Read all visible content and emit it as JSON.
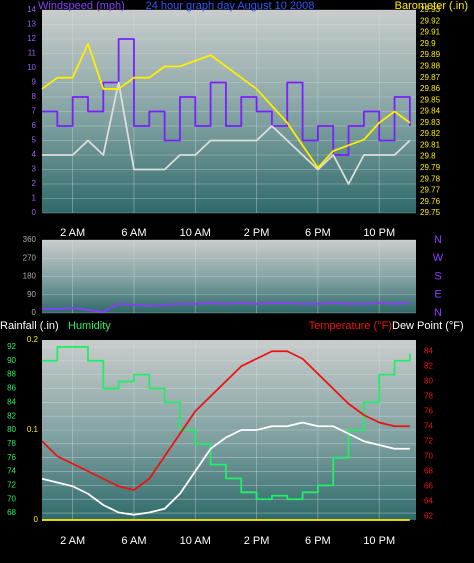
{
  "chart_data": [
    {
      "type": "line",
      "title": "24 hour graph day   August 10 2008",
      "x": [
        0,
        1,
        2,
        3,
        4,
        5,
        6,
        7,
        8,
        9,
        10,
        11,
        12,
        13,
        14,
        15,
        16,
        17,
        18,
        19,
        20,
        21,
        22,
        23,
        24
      ],
      "xlim": [
        0,
        24.4
      ],
      "xticks": [
        {
          "value": 2,
          "label": "2 AM"
        },
        {
          "value": 6,
          "label": "6 AM"
        },
        {
          "value": 10,
          "label": "10 AM"
        },
        {
          "value": 14,
          "label": "2 PM"
        },
        {
          "value": 18,
          "label": "6 PM"
        },
        {
          "value": 22,
          "label": "10 PM"
        }
      ],
      "ylim": [
        0,
        14
      ],
      "yticks": [
        0,
        1,
        2,
        3,
        4,
        5,
        6,
        7,
        8,
        9,
        10,
        11,
        12,
        13,
        14
      ],
      "y2lim": [
        29.75,
        29.93
      ],
      "y2ticks": [
        29.75,
        29.76,
        29.77,
        29.78,
        29.79,
        29.8,
        29.81,
        29.82,
        29.83,
        29.84,
        29.85,
        29.86,
        29.87,
        29.88,
        29.89,
        29.9,
        29.91,
        29.92,
        29.93
      ],
      "grid": true,
      "series": [
        {
          "name": "Windspeed (mph)",
          "color": "#7a1fff",
          "step": true,
          "values": [
            7,
            6,
            8,
            7,
            9,
            12,
            6,
            7,
            5,
            8,
            6,
            9,
            6,
            8,
            7,
            6,
            9,
            5,
            6,
            4,
            6,
            7,
            5,
            8,
            6
          ]
        },
        {
          "color": "#dddddd",
          "values": [
            4,
            4,
            4,
            5,
            4,
            9,
            3,
            3,
            3,
            4,
            4,
            5,
            5,
            5,
            5,
            6,
            5,
            4,
            3,
            4,
            2,
            4,
            4,
            4,
            5
          ]
        },
        {
          "name": "Barometer (.in)",
          "color": "#ffee00",
          "axis": "y2",
          "values": [
            29.86,
            29.87,
            29.87,
            29.9,
            29.86,
            29.86,
            29.87,
            29.87,
            29.88,
            29.88,
            29.885,
            29.89,
            29.88,
            29.87,
            29.86,
            29.845,
            29.83,
            29.81,
            29.79,
            29.805,
            29.81,
            29.815,
            29.83,
            29.84,
            29.83
          ]
        }
      ]
    },
    {
      "type": "line",
      "x": [
        0,
        1,
        2,
        3,
        4,
        5,
        6,
        7,
        8,
        9,
        10,
        11,
        12,
        13,
        14,
        15,
        16,
        17,
        18,
        19,
        20,
        21,
        22,
        23,
        24
      ],
      "xlim": [
        0,
        24.4
      ],
      "xticks": [
        2,
        6,
        10,
        14,
        18,
        22
      ],
      "ylim": [
        0,
        360
      ],
      "yticks": [
        0,
        90,
        180,
        270,
        360
      ],
      "y2lim": [
        0,
        360
      ],
      "y2ticks": [
        {
          "value": 360,
          "label": "N"
        },
        {
          "value": 270,
          "label": "W"
        },
        {
          "value": 180,
          "label": "S"
        },
        {
          "value": 90,
          "label": "E"
        },
        {
          "value": 0,
          "label": "N"
        }
      ],
      "grid": true,
      "series": [
        {
          "color": "#8a3cff",
          "values": [
            20,
            20,
            25,
            15,
            5,
            45,
            40,
            35,
            40,
            45,
            45,
            50,
            45,
            50,
            45,
            50,
            50,
            45,
            45,
            50,
            45,
            45,
            50,
            45,
            50
          ]
        }
      ]
    },
    {
      "type": "line",
      "x": [
        0,
        1,
        2,
        3,
        4,
        5,
        6,
        7,
        8,
        9,
        10,
        11,
        12,
        13,
        14,
        15,
        16,
        17,
        18,
        19,
        20,
        21,
        22,
        23,
        24
      ],
      "xlim": [
        0,
        24.4
      ],
      "xticks": [
        {
          "value": 2,
          "label": "2 AM"
        },
        {
          "value": 6,
          "label": "6 AM"
        },
        {
          "value": 10,
          "label": "10 AM"
        },
        {
          "value": 14,
          "label": "2 PM"
        },
        {
          "value": 18,
          "label": "6 PM"
        },
        {
          "value": 22,
          "label": "10 PM"
        }
      ],
      "ylim": [
        67,
        93
      ],
      "yticks": [
        68,
        70,
        72,
        74,
        76,
        78,
        80,
        82,
        84,
        86,
        88,
        90,
        92
      ],
      "y2lim": [
        61.5,
        85.5
      ],
      "y2ticks": [
        62,
        64,
        66,
        68,
        70,
        72,
        74,
        76,
        78,
        80,
        82,
        84
      ],
      "y3lim": [
        0,
        0.2
      ],
      "y3ticks": [
        0,
        0.1,
        0.2
      ],
      "grid": true,
      "series": [
        {
          "name": "Rainfall (.in)",
          "color": "#ffee00",
          "axis": "y3",
          "values": [
            0,
            0,
            0,
            0,
            0,
            0,
            0,
            0,
            0,
            0,
            0,
            0,
            0,
            0,
            0,
            0,
            0,
            0,
            0,
            0,
            0,
            0,
            0,
            0,
            0
          ]
        },
        {
          "name": "Humidity",
          "color": "#22ee66",
          "step": true,
          "values": [
            90,
            92,
            92,
            90,
            86,
            87,
            88,
            86,
            84,
            80,
            78,
            75,
            73,
            71,
            70,
            70.5,
            70,
            71,
            72,
            76,
            80,
            84,
            88,
            90,
            91
          ]
        },
        {
          "name": "Temperature (°F)",
          "color": "#ee1111",
          "axis": "y2",
          "values": [
            72,
            70,
            69,
            68,
            67,
            66,
            65.5,
            67,
            70,
            73,
            76,
            78,
            80,
            82,
            83,
            84,
            84,
            83,
            81,
            79,
            77,
            75.5,
            74.5,
            74,
            74
          ]
        },
        {
          "name": "Dew Point (°F)",
          "color": "#ffffff",
          "axis": "y2",
          "values": [
            67,
            66.5,
            66,
            65,
            63.5,
            62.5,
            62.2,
            62.5,
            63,
            65,
            68,
            71,
            72.5,
            73.5,
            73.5,
            74,
            74,
            74.5,
            74,
            74,
            73,
            72,
            71.5,
            71,
            71
          ]
        }
      ]
    }
  ]
}
